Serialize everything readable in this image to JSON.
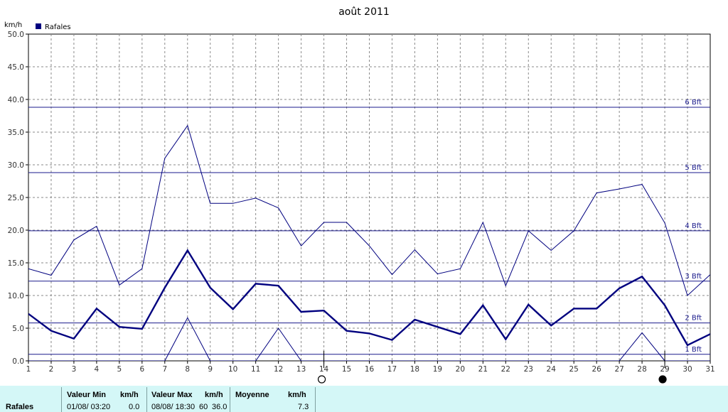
{
  "chart_data": {
    "type": "line",
    "title": "août 2011",
    "ylabel": "km/h",
    "ylim": [
      0,
      50
    ],
    "yticks": [
      "0.0",
      "5.0",
      "10.0",
      "15.0",
      "20.0",
      "25.0",
      "30.0",
      "35.0",
      "40.0",
      "45.0",
      "50.0"
    ],
    "x": [
      1,
      2,
      3,
      4,
      5,
      6,
      7,
      8,
      9,
      10,
      11,
      12,
      13,
      14,
      15,
      16,
      17,
      18,
      19,
      20,
      21,
      22,
      23,
      24,
      25,
      26,
      27,
      28,
      29,
      30,
      31
    ],
    "grid": true,
    "legend": {
      "position": "top-left",
      "entries": [
        "Rafales"
      ]
    },
    "series": [
      {
        "name": "Rafales",
        "role": "average",
        "color": "#00007f",
        "values": [
          7.2,
          4.6,
          3.4,
          8.0,
          5.2,
          4.9,
          11.2,
          16.9,
          11.2,
          7.9,
          11.8,
          11.5,
          7.5,
          7.7,
          4.6,
          4.2,
          3.2,
          6.3,
          5.2,
          4.1,
          8.5,
          3.3,
          8.6,
          5.4,
          8.0,
          8.0,
          11.1,
          12.9,
          8.5,
          2.4,
          4.1
        ]
      },
      {
        "role": "maximum",
        "color": "#00007f",
        "values": [
          14.1,
          13.1,
          18.5,
          20.6,
          11.6,
          14.1,
          31.0,
          36.0,
          24.1,
          24.1,
          24.9,
          23.4,
          17.6,
          21.2,
          21.2,
          17.6,
          13.2,
          17.0,
          13.3,
          14.1,
          21.2,
          11.5,
          19.9,
          16.9,
          19.9,
          25.7,
          26.3,
          27.0,
          21.1,
          10.0,
          13.2
        ]
      },
      {
        "role": "minimum",
        "color": "#00007f",
        "values": [
          0,
          0,
          0,
          0,
          0,
          0,
          0,
          6.6,
          0,
          0,
          0,
          5.0,
          0,
          0,
          0,
          0,
          0,
          0,
          0,
          0,
          0,
          0,
          0,
          0,
          0,
          0,
          0,
          4.3,
          0,
          0,
          0
        ]
      }
    ],
    "reference_lines": [
      {
        "label": "1 Bft",
        "value": 1.0
      },
      {
        "label": "2 Bft",
        "value": 5.8
      },
      {
        "label": "3 Bft",
        "value": 12.2
      },
      {
        "label": "4 Bft",
        "value": 19.9
      },
      {
        "label": "5 Bft",
        "value": 28.8
      },
      {
        "label": "6 Bft",
        "value": 38.8
      }
    ],
    "moon_phases": [
      {
        "day": 14,
        "phase": "full-moon"
      },
      {
        "day": 29,
        "phase": "new-moon"
      }
    ]
  },
  "stats": {
    "row_label": "Rafales",
    "min_header": "Valeur Min",
    "min_unit": "km/h",
    "min_date": "01/08/  03:20",
    "min_value": "0.0",
    "max_header": "Valeur Max",
    "max_unit": "km/h",
    "max_date": "08/08/  18:30",
    "max_suffix": "60",
    "max_value": "36.0",
    "avg_header": "Moyenne",
    "avg_unit": "km/h",
    "avg_value": "7.3"
  }
}
